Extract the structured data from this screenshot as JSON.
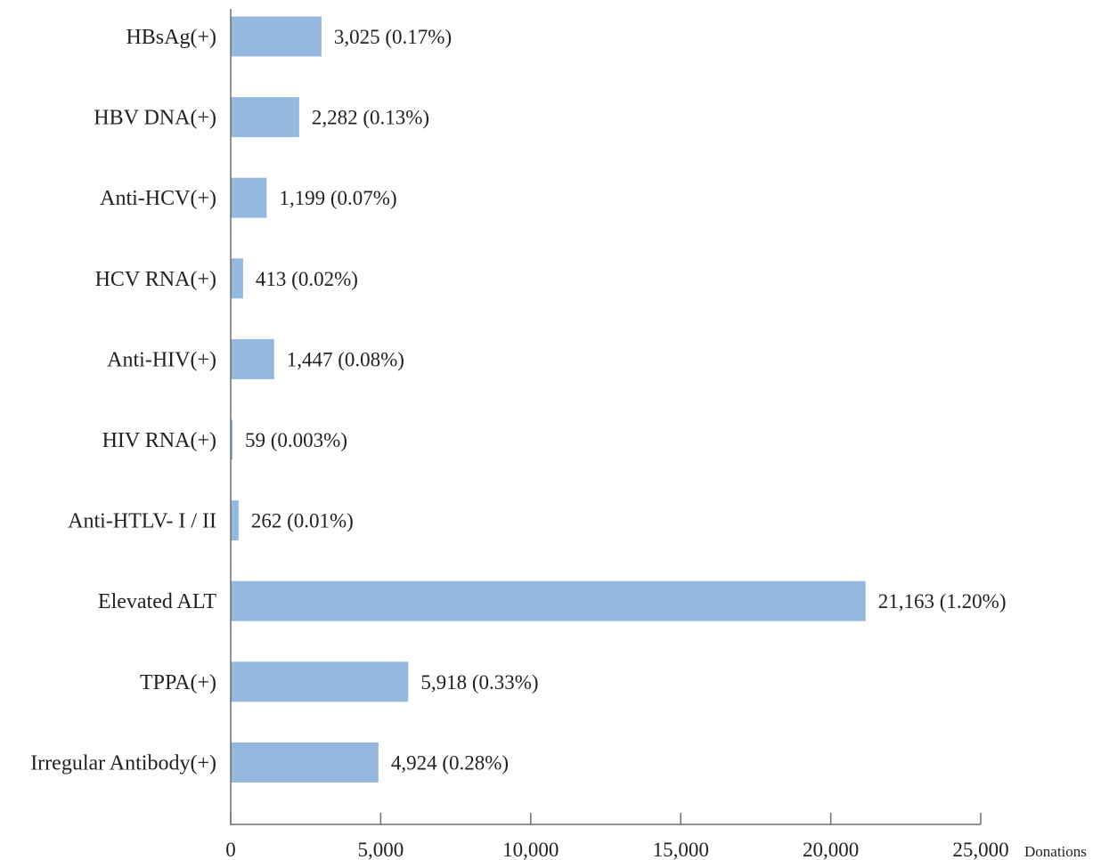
{
  "chart_data": {
    "type": "bar",
    "orientation": "horizontal",
    "categories": [
      "HBsAg(+)",
      "HBV DNA(+)",
      "Anti-HCV(+)",
      "HCV RNA(+)",
      "Anti-HIV(+)",
      "HIV RNA(+)",
      "Anti-HTLV- I / II",
      "Elevated ALT",
      "TPPA(+)",
      "Irregular Antibody(+)"
    ],
    "values": [
      3025,
      2282,
      1199,
      413,
      1447,
      59,
      262,
      21163,
      5918,
      4924
    ],
    "data_labels": [
      "3,025 (0.17%)",
      "2,282 (0.13%)",
      "1,199 (0.07%)",
      "413 (0.02%)",
      "1,447 (0.08%)",
      "59 (0.003%)",
      "262 (0.01%)",
      "21,163 (1.20%)",
      "5,918 (0.33%)",
      "4,924 (0.28%)"
    ],
    "xlim": [
      0,
      25000
    ],
    "x_ticks": [
      0,
      5000,
      10000,
      15000,
      20000,
      25000
    ],
    "x_tick_labels": [
      "0",
      "5,000",
      "10,000",
      "15,000",
      "20,000",
      "25,000"
    ],
    "xlabel": "Donations",
    "ylabel": "",
    "title": "",
    "bar_color": "#95b9de",
    "axis_color": "#6d6e71",
    "grid": false,
    "legend": "none"
  }
}
